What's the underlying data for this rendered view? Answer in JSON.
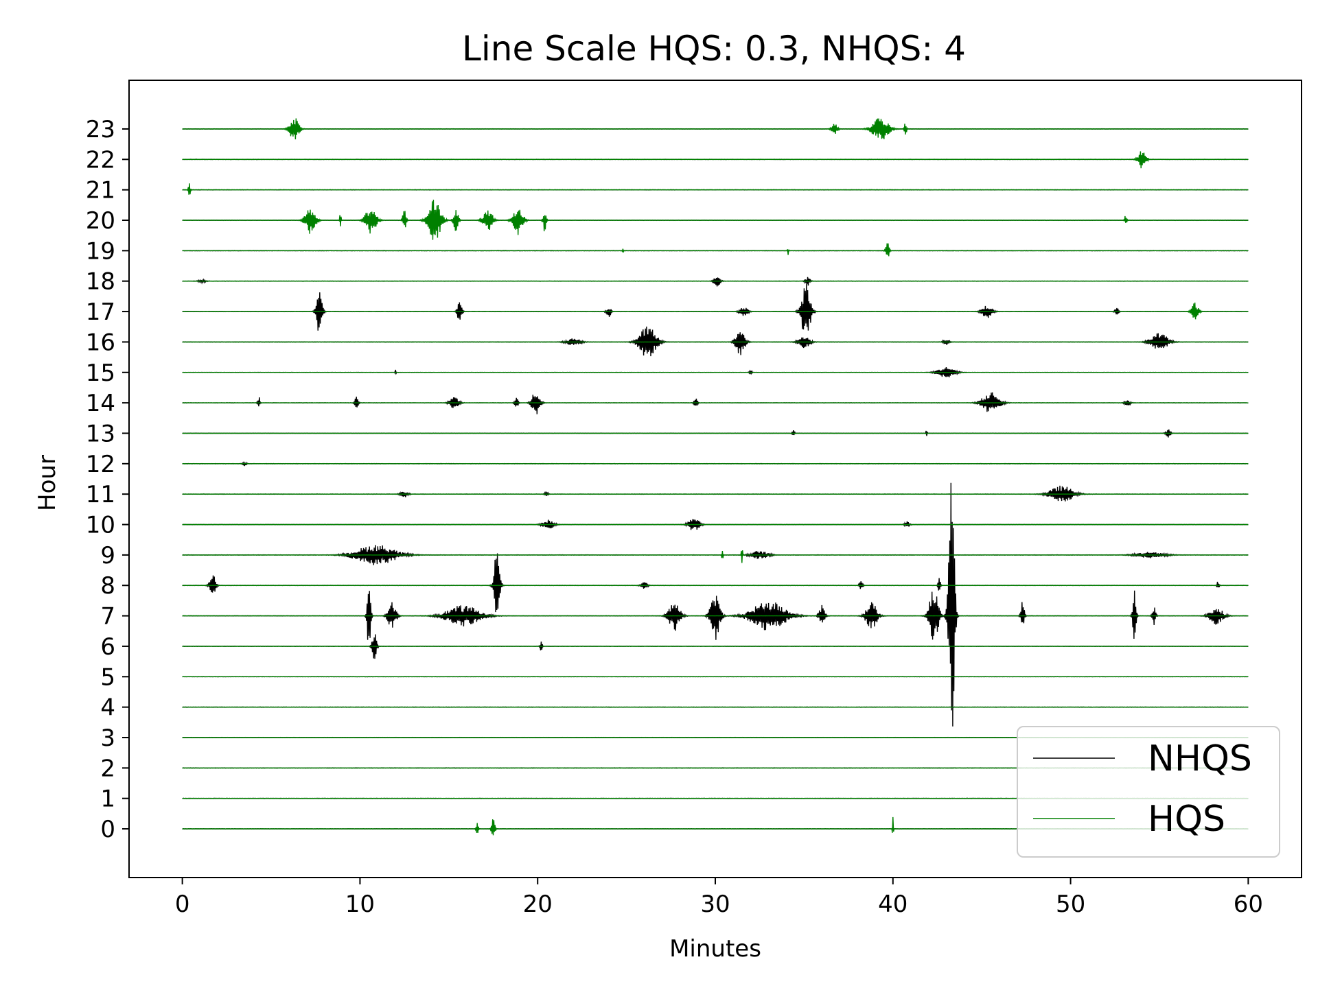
{
  "chart_data": {
    "type": "line",
    "title": "Line Scale HQS: 0.3,  NHQS: 4",
    "xlabel": "Minutes",
    "ylabel": "Hour",
    "xlim": [
      -3,
      63
    ],
    "ylim": [
      -1.6,
      24.6
    ],
    "xticks": [
      0,
      10,
      20,
      30,
      40,
      50,
      60
    ],
    "yticks": [
      0,
      1,
      2,
      3,
      4,
      5,
      6,
      7,
      8,
      9,
      10,
      11,
      12,
      13,
      14,
      15,
      16,
      17,
      18,
      19,
      20,
      21,
      22,
      23
    ],
    "trace_span_minutes": [
      0,
      60
    ],
    "grid": false,
    "legend_position": "lower-right",
    "series": [
      {
        "name": "NHQS",
        "color": "#000000",
        "bursts": [
          {
            "hour": 18,
            "events": [
              [
                1.1,
                0.6,
                0.06
              ],
              [
                30.1,
                0.5,
                0.25
              ],
              [
                35.2,
                0.4,
                0.15
              ]
            ]
          },
          {
            "hour": 17,
            "events": [
              [
                7.7,
                0.5,
                0.8
              ],
              [
                15.6,
                0.4,
                0.35
              ],
              [
                24.0,
                0.4,
                0.2
              ],
              [
                31.6,
                0.7,
                0.18
              ],
              [
                35.1,
                0.8,
                0.95
              ],
              [
                45.3,
                0.9,
                0.22
              ],
              [
                52.6,
                0.3,
                0.15
              ]
            ]
          },
          {
            "hour": 16,
            "events": [
              [
                22.0,
                1.2,
                0.14
              ],
              [
                26.2,
                1.5,
                0.55
              ],
              [
                31.4,
                0.8,
                0.45
              ],
              [
                35.0,
                1.0,
                0.2
              ],
              [
                43.0,
                0.5,
                0.12
              ],
              [
                55.0,
                1.5,
                0.3
              ]
            ]
          },
          {
            "hour": 15,
            "events": [
              [
                12.0,
                0.1,
                0.1
              ],
              [
                32.0,
                0.3,
                0.06
              ],
              [
                43.0,
                1.5,
                0.18
              ]
            ]
          },
          {
            "hour": 14,
            "events": [
              [
                4.3,
                0.2,
                0.25
              ],
              [
                9.8,
                0.3,
                0.22
              ],
              [
                15.3,
                0.8,
                0.2
              ],
              [
                18.8,
                0.3,
                0.2
              ],
              [
                19.9,
                0.7,
                0.42
              ],
              [
                28.9,
                0.3,
                0.15
              ],
              [
                45.5,
                1.5,
                0.35
              ],
              [
                53.2,
                0.5,
                0.1
              ]
            ]
          },
          {
            "hour": 13,
            "events": [
              [
                34.4,
                0.2,
                0.12
              ],
              [
                41.9,
                0.1,
                0.2
              ],
              [
                55.5,
                0.4,
                0.15
              ]
            ]
          },
          {
            "hour": 12,
            "events": [
              [
                3.5,
                0.3,
                0.08
              ]
            ]
          },
          {
            "hour": 11,
            "events": [
              [
                12.5,
                0.7,
                0.1
              ],
              [
                20.5,
                0.3,
                0.12
              ],
              [
                49.5,
                2.0,
                0.28
              ]
            ]
          },
          {
            "hour": 10,
            "events": [
              [
                20.6,
                1.0,
                0.15
              ],
              [
                28.8,
                1.0,
                0.22
              ],
              [
                40.8,
                0.4,
                0.1
              ]
            ]
          },
          {
            "hour": 9,
            "events": [
              [
                10.9,
                3.5,
                0.35
              ],
              [
                32.5,
                1.5,
                0.14
              ],
              [
                54.5,
                2.5,
                0.1
              ]
            ]
          },
          {
            "hour": 8,
            "events": [
              [
                1.7,
                0.5,
                0.4
              ],
              [
                17.7,
                0.5,
                1.15
              ],
              [
                26.0,
                0.5,
                0.15
              ],
              [
                38.2,
                0.3,
                0.15
              ],
              [
                42.6,
                0.2,
                0.3
              ],
              [
                58.3,
                0.2,
                0.15
              ]
            ]
          },
          {
            "hour": 7,
            "events": [
              [
                10.5,
                0.3,
                1.3
              ],
              [
                11.8,
                0.7,
                0.5
              ],
              [
                15.8,
                3.0,
                0.35
              ],
              [
                27.7,
                1.0,
                0.5
              ],
              [
                30.0,
                0.8,
                0.85
              ],
              [
                33.0,
                3.0,
                0.5
              ],
              [
                36.0,
                0.5,
                0.35
              ],
              [
                38.8,
                1.0,
                0.45
              ],
              [
                42.3,
                0.8,
                0.95
              ],
              [
                43.3,
                0.5,
                4.6
              ],
              [
                47.3,
                0.3,
                0.5
              ],
              [
                53.6,
                0.3,
                0.95
              ],
              [
                54.7,
                0.3,
                0.3
              ],
              [
                58.2,
                1.2,
                0.3
              ]
            ]
          },
          {
            "hour": 6,
            "events": [
              [
                10.8,
                0.4,
                0.5
              ],
              [
                20.2,
                0.2,
                0.18
              ]
            ]
          }
        ]
      },
      {
        "name": "HQS",
        "color": "#008000",
        "bursts": [
          {
            "hour": 23,
            "events": [
              [
                6.3,
                0.8,
                0.42
              ],
              [
                36.7,
                0.5,
                0.22
              ],
              [
                39.3,
                1.4,
                0.4
              ],
              [
                40.7,
                0.2,
                0.25
              ]
            ]
          },
          {
            "hour": 22,
            "events": [
              [
                54.0,
                0.7,
                0.3
              ]
            ]
          },
          {
            "hour": 21,
            "events": [
              [
                0.4,
                0.2,
                0.22
              ]
            ]
          },
          {
            "hour": 20,
            "events": [
              [
                7.2,
                0.9,
                0.45
              ],
              [
                8.9,
                0.1,
                0.4
              ],
              [
                10.6,
                1.0,
                0.45
              ],
              [
                12.5,
                0.3,
                0.4
              ],
              [
                14.2,
                1.1,
                0.75
              ],
              [
                15.4,
                0.4,
                0.45
              ],
              [
                17.2,
                0.9,
                0.35
              ],
              [
                18.9,
                0.9,
                0.5
              ],
              [
                20.4,
                0.3,
                0.4
              ],
              [
                53.1,
                0.2,
                0.2
              ]
            ]
          },
          {
            "hour": 19,
            "events": [
              [
                24.8,
                0.1,
                0.15
              ],
              [
                34.1,
                0.1,
                0.25
              ],
              [
                39.7,
                0.3,
                0.35
              ]
            ]
          },
          {
            "hour": 17,
            "events": [
              [
                57.0,
                0.6,
                0.3
              ]
            ]
          },
          {
            "hour": 9,
            "events": [
              [
                30.4,
                0.1,
                0.25
              ],
              [
                31.5,
                0.1,
                0.38
              ]
            ]
          },
          {
            "hour": 0,
            "events": [
              [
                16.6,
                0.2,
                0.2
              ],
              [
                17.5,
                0.3,
                0.35
              ],
              [
                40.0,
                0.1,
                0.4
              ]
            ]
          }
        ]
      }
    ]
  }
}
